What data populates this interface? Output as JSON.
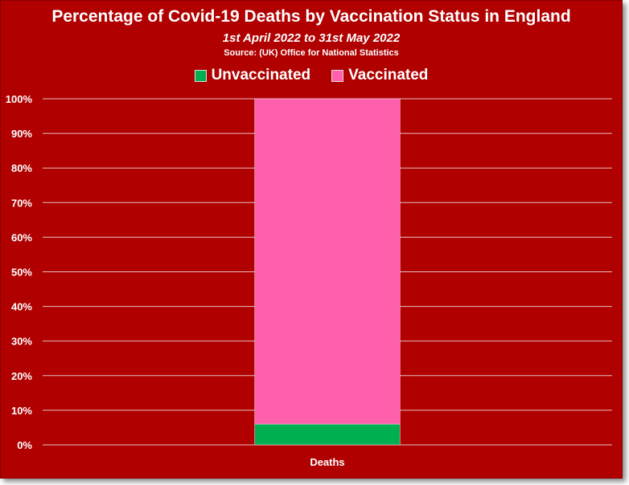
{
  "colors": {
    "background": "#b00000",
    "unvaccinated": "#00b050",
    "vaccinated": "#ff5fad",
    "gridline": "#e8c0c0"
  },
  "chart_data": {
    "type": "bar",
    "stacked": true,
    "percent": true,
    "title": "Percentage of Covid-19 Deaths by Vaccination Status in England",
    "subtitle": "1st April 2022 to 31st May 2022",
    "source": "Source: (UK) Office for National Statistics",
    "categories": [
      "Deaths"
    ],
    "series": [
      {
        "name": "Unvaccinated",
        "values": [
          6
        ],
        "color": "#00b050"
      },
      {
        "name": "Vaccinated",
        "values": [
          94
        ],
        "color": "#ff5fad"
      }
    ],
    "ylim": [
      0,
      100
    ],
    "yticks": [
      "0%",
      "10%",
      "20%",
      "30%",
      "40%",
      "50%",
      "60%",
      "70%",
      "80%",
      "90%",
      "100%"
    ],
    "xlabel": "",
    "ylabel": "",
    "grid": true,
    "legend_position": "top"
  }
}
